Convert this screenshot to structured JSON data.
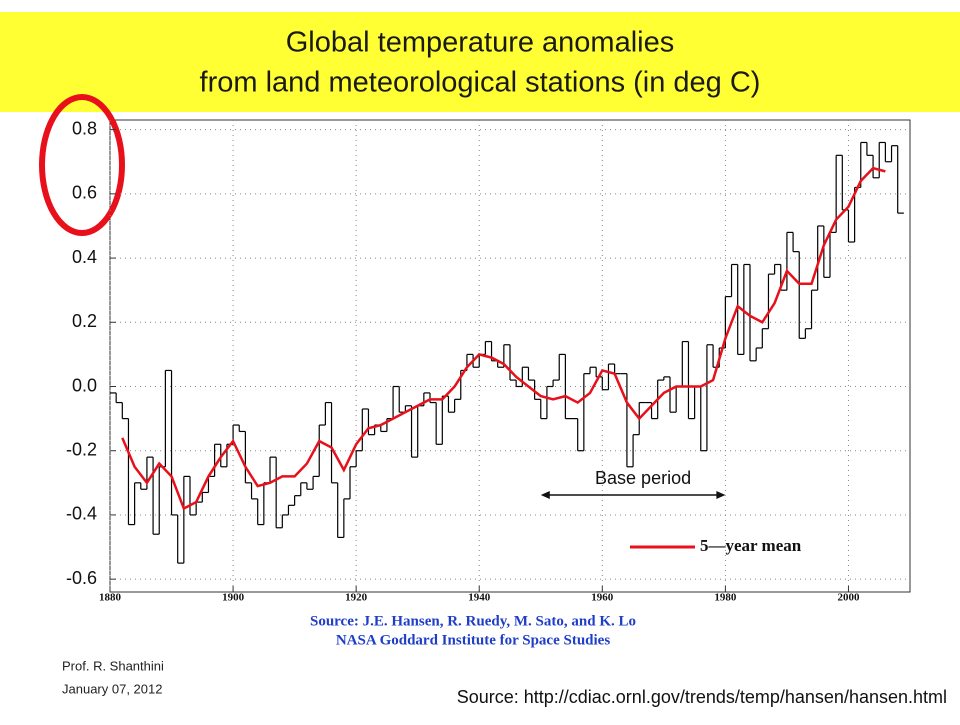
{
  "chart_data": {
    "type": "line",
    "title_lines": [
      "Global temperature anomalies",
      "from land meteorological stations (in deg C)"
    ],
    "xlim": [
      1880,
      2010
    ],
    "ylim": [
      -0.64,
      0.83
    ],
    "xticks": [
      1880,
      1900,
      1920,
      1940,
      1960,
      1980,
      2000
    ],
    "yticks": [
      -0.6,
      -0.4,
      -0.2,
      {
        "value": 0,
        "label": "0.0"
      },
      0.2,
      0.4,
      0.6,
      0.8
    ],
    "grid": true,
    "series": [
      {
        "color": "#000000",
        "step": true,
        "x": [
          1880,
          1881,
          1882,
          1883,
          1884,
          1885,
          1886,
          1887,
          1888,
          1889,
          1890,
          1891,
          1892,
          1893,
          1894,
          1895,
          1896,
          1897,
          1898,
          1899,
          1900,
          1901,
          1902,
          1903,
          1904,
          1905,
          1906,
          1907,
          1908,
          1909,
          1910,
          1911,
          1912,
          1913,
          1914,
          1915,
          1916,
          1917,
          1918,
          1919,
          1920,
          1921,
          1922,
          1923,
          1924,
          1925,
          1926,
          1927,
          1928,
          1929,
          1930,
          1931,
          1932,
          1933,
          1934,
          1935,
          1936,
          1937,
          1938,
          1939,
          1940,
          1941,
          1942,
          1943,
          1944,
          1945,
          1946,
          1947,
          1948,
          1949,
          1950,
          1951,
          1952,
          1953,
          1954,
          1955,
          1956,
          1957,
          1958,
          1959,
          1960,
          1961,
          1962,
          1963,
          1964,
          1965,
          1966,
          1967,
          1968,
          1969,
          1970,
          1971,
          1972,
          1973,
          1974,
          1975,
          1976,
          1977,
          1978,
          1979,
          1980,
          1981,
          1982,
          1983,
          1984,
          1985,
          1986,
          1987,
          1988,
          1989,
          1990,
          1991,
          1992,
          1993,
          1994,
          1995,
          1996,
          1997,
          1998,
          1999,
          2000,
          2001,
          2002,
          2003,
          2004,
          2005,
          2006,
          2007,
          2008
        ],
        "values": [
          -0.02,
          -0.05,
          -0.1,
          -0.43,
          -0.3,
          -0.32,
          -0.22,
          -0.46,
          -0.25,
          0.05,
          -0.4,
          -0.55,
          -0.28,
          -0.4,
          -0.36,
          -0.33,
          -0.28,
          -0.18,
          -0.25,
          -0.18,
          -0.12,
          -0.14,
          -0.3,
          -0.35,
          -0.43,
          -0.3,
          -0.22,
          -0.44,
          -0.4,
          -0.37,
          -0.34,
          -0.3,
          -0.32,
          -0.28,
          -0.12,
          -0.05,
          -0.3,
          -0.47,
          -0.35,
          -0.25,
          -0.2,
          -0.07,
          -0.15,
          -0.12,
          -0.14,
          -0.1,
          0.0,
          -0.08,
          -0.06,
          -0.22,
          -0.06,
          -0.02,
          -0.05,
          -0.18,
          -0.03,
          -0.08,
          -0.04,
          0.05,
          0.1,
          0.06,
          0.1,
          0.14,
          0.08,
          0.06,
          0.13,
          0.02,
          0.0,
          0.06,
          0.02,
          -0.04,
          -0.1,
          0.0,
          0.02,
          0.1,
          -0.1,
          -0.1,
          -0.2,
          0.04,
          0.06,
          0.03,
          -0.01,
          0.07,
          0.04,
          0.04,
          -0.25,
          -0.15,
          -0.05,
          -0.05,
          -0.1,
          0.02,
          0.03,
          -0.08,
          0.0,
          0.14,
          -0.1,
          0.0,
          -0.2,
          0.13,
          0.06,
          0.12,
          0.28,
          0.38,
          0.1,
          0.38,
          0.08,
          0.12,
          0.18,
          0.35,
          0.38,
          0.3,
          0.48,
          0.42,
          0.15,
          0.18,
          0.3,
          0.5,
          0.34,
          0.48,
          0.72,
          0.55,
          0.45,
          0.62,
          0.76,
          0.72,
          0.65,
          0.76,
          0.7,
          0.75,
          0.54
        ]
      },
      {
        "name": "5—year mean",
        "color": "#e8101a",
        "x": [
          1882,
          1884,
          1886,
          1888,
          1890,
          1892,
          1894,
          1896,
          1898,
          1900,
          1902,
          1904,
          1906,
          1908,
          1910,
          1912,
          1914,
          1916,
          1918,
          1920,
          1922,
          1924,
          1926,
          1928,
          1930,
          1932,
          1934,
          1936,
          1938,
          1940,
          1942,
          1944,
          1946,
          1948,
          1950,
          1952,
          1954,
          1956,
          1958,
          1960,
          1962,
          1964,
          1966,
          1968,
          1970,
          1972,
          1974,
          1976,
          1978,
          1980,
          1982,
          1984,
          1986,
          1988,
          1990,
          1992,
          1994,
          1996,
          1998,
          2000,
          2002,
          2004,
          2006
        ],
        "values": [
          -0.16,
          -0.25,
          -0.3,
          -0.24,
          -0.28,
          -0.38,
          -0.36,
          -0.28,
          -0.22,
          -0.17,
          -0.25,
          -0.31,
          -0.3,
          -0.28,
          -0.28,
          -0.24,
          -0.17,
          -0.19,
          -0.26,
          -0.18,
          -0.13,
          -0.12,
          -0.1,
          -0.08,
          -0.06,
          -0.04,
          -0.04,
          0.0,
          0.06,
          0.1,
          0.09,
          0.07,
          0.03,
          0.0,
          -0.03,
          -0.04,
          -0.03,
          -0.05,
          -0.02,
          0.05,
          0.04,
          -0.05,
          -0.1,
          -0.06,
          -0.02,
          0.0,
          0.0,
          0.0,
          0.02,
          0.15,
          0.25,
          0.22,
          0.2,
          0.26,
          0.36,
          0.32,
          0.32,
          0.44,
          0.52,
          0.56,
          0.64,
          0.68,
          0.67
        ]
      }
    ],
    "annotation": {
      "text": "Base period",
      "x": [
        1950,
        1980
      ]
    },
    "source_lines": [
      "Source: J.E. Hansen, R. Ruedy, M. Sato, and K. Lo",
      "NASA Goddard Institute for Space Studies"
    ]
  },
  "footer": {
    "author": "Prof. R. Shanthini",
    "date": "January 07, 2012",
    "source": "Source: http://cdiac.ornl.gov/trends/temp/hansen/hansen.html"
  }
}
